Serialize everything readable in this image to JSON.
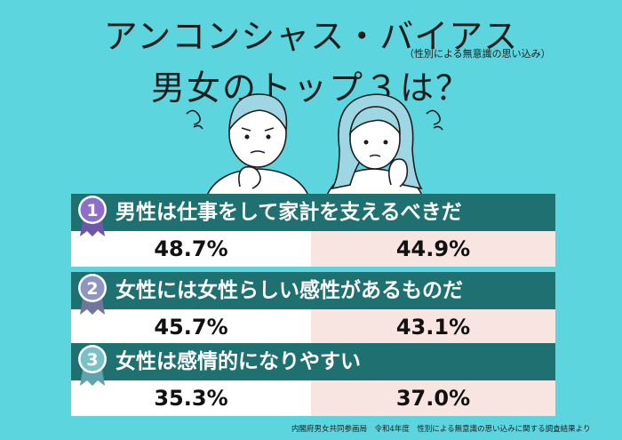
{
  "title": {
    "main": "アンコンシャス・バイアス",
    "sub": "（性別による無意識の思い込み）",
    "question": "男女のトップ３は？"
  },
  "ranks": [
    {
      "num": "1",
      "text": "男性は仕事をして家計を支えるべきだ",
      "male": "48.7%",
      "female": "44.9%",
      "medal_color": "#8b6fc9"
    },
    {
      "num": "2",
      "text": "女性には女性らしい感性があるものだ",
      "male": "45.7%",
      "female": "43.1%",
      "medal_color": "#8f95bf"
    },
    {
      "num": "3",
      "text": "女性は感情的になりやすい",
      "male": "35.3%",
      "female": "37.0%",
      "medal_color": "#7cc0c8"
    }
  ],
  "source": "内閣府男女共同参画局　令和4年度　性別による無意識の思い込みに関する調査結果より"
}
